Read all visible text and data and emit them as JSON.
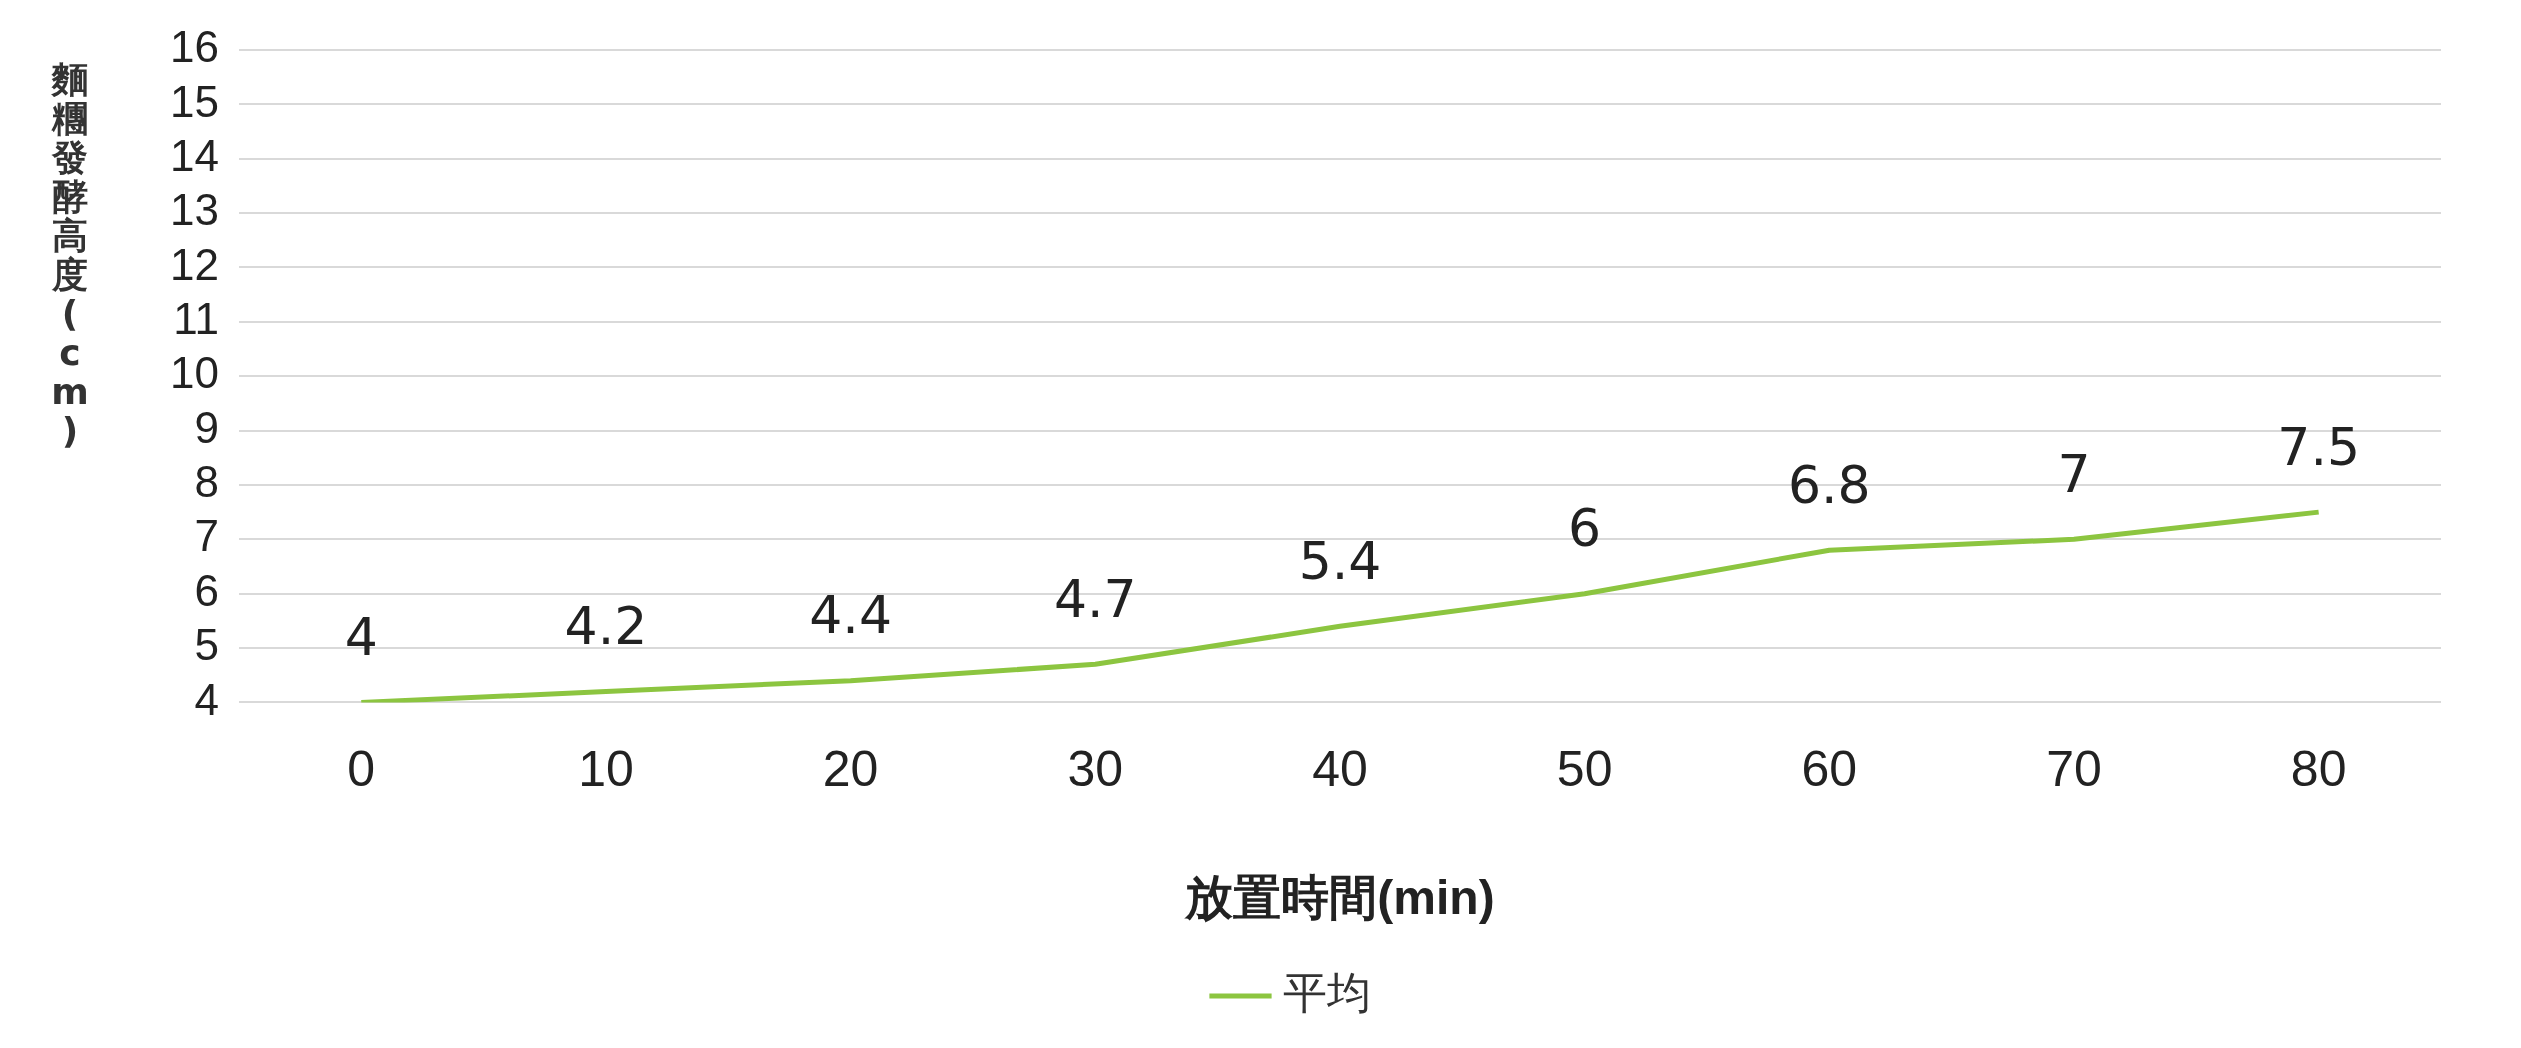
{
  "chart_data": {
    "type": "line",
    "xlabel": "放置時間(min)",
    "ylabel": "麵糰發酵高度(cm)",
    "categories": [
      "0",
      "10",
      "20",
      "30",
      "40",
      "50",
      "60",
      "70",
      "80"
    ],
    "series": [
      {
        "name": "平均",
        "color": "#8cc540",
        "values": [
          4,
          4.2,
          4.4,
          4.7,
          5.4,
          6,
          6.8,
          7,
          7.5
        ]
      }
    ],
    "ylim": [
      4,
      16
    ],
    "yticks": [
      4,
      5,
      6,
      7,
      8,
      9,
      10,
      11,
      12,
      13,
      14,
      15,
      16
    ],
    "grid": "y",
    "legend": "bottom",
    "data_labels": true,
    "marker": "none"
  }
}
